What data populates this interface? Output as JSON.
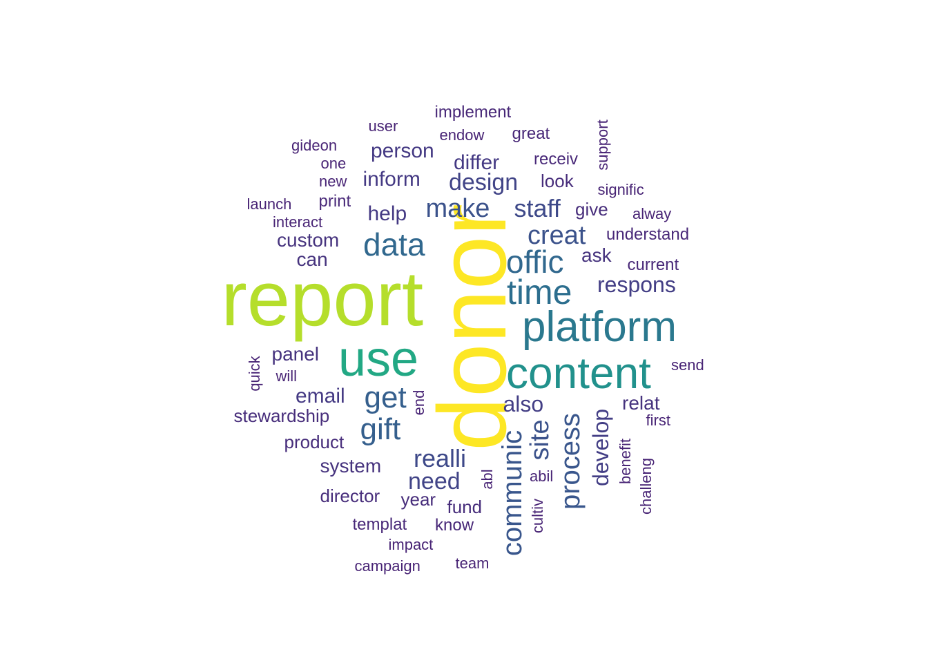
{
  "wordcloud": {
    "palette": {
      "yellow": "#fde725",
      "lime": "#b5de2b",
      "green": "#22a884",
      "teal": "#1f9e89",
      "blue_teal": "#2a788e",
      "blue": "#31688e",
      "dark_blue": "#355f8d",
      "indigo": "#3b528b",
      "dark_indigo": "#443983",
      "navy": "#2c2d73",
      "purple": "#3e2c70"
    },
    "words": [
      {
        "text": "donor",
        "freq": 100,
        "color": "#fde725",
        "rotated": true
      },
      {
        "text": "report",
        "freq": 95,
        "color": "#b5de2b",
        "rotated": false
      },
      {
        "text": "use",
        "freq": 70,
        "color": "#22a884",
        "rotated": false
      },
      {
        "text": "content",
        "freq": 62,
        "color": "#21918c",
        "rotated": false
      },
      {
        "text": "platform",
        "freq": 60,
        "color": "#2a788e",
        "rotated": false
      },
      {
        "text": "time",
        "freq": 45,
        "color": "#2c6e8e",
        "rotated": false
      },
      {
        "text": "offic",
        "freq": 42,
        "color": "#31688e",
        "rotated": false
      },
      {
        "text": "data",
        "freq": 42,
        "color": "#31688e",
        "rotated": false
      },
      {
        "text": "get",
        "freq": 40,
        "color": "#355f8d",
        "rotated": false
      },
      {
        "text": "gift",
        "freq": 40,
        "color": "#355f8d",
        "rotated": false
      },
      {
        "text": "process",
        "freq": 38,
        "color": "#39568c",
        "rotated": true
      },
      {
        "text": "communic",
        "freq": 38,
        "color": "#39568c",
        "rotated": true
      },
      {
        "text": "make",
        "freq": 36,
        "color": "#3b528b",
        "rotated": false
      },
      {
        "text": "creat",
        "freq": 36,
        "color": "#3b528b",
        "rotated": false
      },
      {
        "text": "site",
        "freq": 36,
        "color": "#3b528b",
        "rotated": true
      },
      {
        "text": "staff",
        "freq": 34,
        "color": "#3e4989",
        "rotated": false
      },
      {
        "text": "realli",
        "freq": 34,
        "color": "#3e4989",
        "rotated": false
      },
      {
        "text": "need",
        "freq": 32,
        "color": "#414487",
        "rotated": false
      },
      {
        "text": "design",
        "freq": 32,
        "color": "#414487",
        "rotated": false
      },
      {
        "text": "respons",
        "freq": 30,
        "color": "#433e85",
        "rotated": false
      },
      {
        "text": "also",
        "freq": 30,
        "color": "#433e85",
        "rotated": false
      },
      {
        "text": "develop",
        "freq": 30,
        "color": "#433e85",
        "rotated": true
      },
      {
        "text": "email",
        "freq": 28,
        "color": "#443983",
        "rotated": false
      },
      {
        "text": "help",
        "freq": 28,
        "color": "#443983",
        "rotated": false
      },
      {
        "text": "inform",
        "freq": 28,
        "color": "#443983",
        "rotated": false
      },
      {
        "text": "person",
        "freq": 28,
        "color": "#443983",
        "rotated": false
      },
      {
        "text": "differ",
        "freq": 28,
        "color": "#443983",
        "rotated": false
      },
      {
        "text": "custom",
        "freq": 26,
        "color": "#46337e",
        "rotated": false
      },
      {
        "text": "panel",
        "freq": 26,
        "color": "#46337e",
        "rotated": false
      },
      {
        "text": "system",
        "freq": 26,
        "color": "#46337e",
        "rotated": false
      },
      {
        "text": "relat",
        "freq": 26,
        "color": "#46337e",
        "rotated": false
      },
      {
        "text": "ask",
        "freq": 26,
        "color": "#46337e",
        "rotated": false
      },
      {
        "text": "can",
        "freq": 26,
        "color": "#46337e",
        "rotated": false
      },
      {
        "text": "look",
        "freq": 24,
        "color": "#472d7b",
        "rotated": false
      },
      {
        "text": "give",
        "freq": 24,
        "color": "#472d7b",
        "rotated": false
      },
      {
        "text": "fund",
        "freq": 24,
        "color": "#472d7b",
        "rotated": false
      },
      {
        "text": "year",
        "freq": 24,
        "color": "#472d7b",
        "rotated": false
      },
      {
        "text": "director",
        "freq": 24,
        "color": "#472d7b",
        "rotated": false
      },
      {
        "text": "stewardship",
        "freq": 24,
        "color": "#472d7b",
        "rotated": false
      },
      {
        "text": "product",
        "freq": 24,
        "color": "#472d7b",
        "rotated": false
      },
      {
        "text": "templat",
        "freq": 22,
        "color": "#482878",
        "rotated": false
      },
      {
        "text": "know",
        "freq": 22,
        "color": "#482878",
        "rotated": false
      },
      {
        "text": "print",
        "freq": 22,
        "color": "#482878",
        "rotated": false
      },
      {
        "text": "understand",
        "freq": 22,
        "color": "#482878",
        "rotated": false
      },
      {
        "text": "current",
        "freq": 22,
        "color": "#482878",
        "rotated": false
      },
      {
        "text": "implement",
        "freq": 22,
        "color": "#482878",
        "rotated": false
      },
      {
        "text": "receiv",
        "freq": 22,
        "color": "#482878",
        "rotated": false
      },
      {
        "text": "great",
        "freq": 22,
        "color": "#482878",
        "rotated": false
      },
      {
        "text": "will",
        "freq": 20,
        "color": "#482475",
        "rotated": false
      },
      {
        "text": "quick",
        "freq": 20,
        "color": "#482475",
        "rotated": true
      },
      {
        "text": "end",
        "freq": 20,
        "color": "#482475",
        "rotated": true
      },
      {
        "text": "send",
        "freq": 20,
        "color": "#482475",
        "rotated": false
      },
      {
        "text": "first",
        "freq": 20,
        "color": "#482475",
        "rotated": false
      },
      {
        "text": "benefit",
        "freq": 20,
        "color": "#482475",
        "rotated": true
      },
      {
        "text": "abil",
        "freq": 20,
        "color": "#482475",
        "rotated": false
      },
      {
        "text": "abl",
        "freq": 20,
        "color": "#482475",
        "rotated": true
      },
      {
        "text": "cultiv",
        "freq": 20,
        "color": "#482475",
        "rotated": true
      },
      {
        "text": "challeng",
        "freq": 20,
        "color": "#482475",
        "rotated": true
      },
      {
        "text": "support",
        "freq": 20,
        "color": "#482475",
        "rotated": true
      },
      {
        "text": "signific",
        "freq": 20,
        "color": "#482475",
        "rotated": false
      },
      {
        "text": "alway",
        "freq": 20,
        "color": "#482475",
        "rotated": false
      },
      {
        "text": "gideon",
        "freq": 20,
        "color": "#482475",
        "rotated": false
      },
      {
        "text": "one",
        "freq": 20,
        "color": "#482475",
        "rotated": false
      },
      {
        "text": "new",
        "freq": 20,
        "color": "#482475",
        "rotated": false
      },
      {
        "text": "launch",
        "freq": 20,
        "color": "#482475",
        "rotated": false
      },
      {
        "text": "interact",
        "freq": 20,
        "color": "#482475",
        "rotated": false
      },
      {
        "text": "user",
        "freq": 20,
        "color": "#482475",
        "rotated": false
      },
      {
        "text": "endow",
        "freq": 20,
        "color": "#482475",
        "rotated": false
      },
      {
        "text": "impact",
        "freq": 20,
        "color": "#482475",
        "rotated": false
      },
      {
        "text": "campaign",
        "freq": 20,
        "color": "#482475",
        "rotated": false
      },
      {
        "text": "team",
        "freq": 20,
        "color": "#482475",
        "rotated": false
      }
    ]
  }
}
